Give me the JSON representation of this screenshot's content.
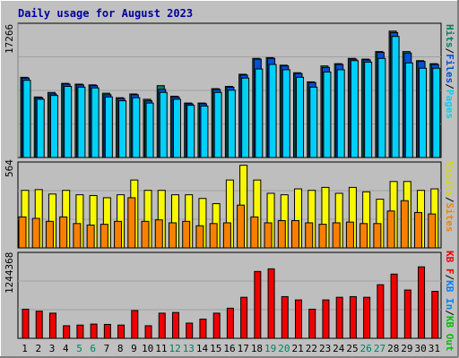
{
  "title": "Daily usage for August 2023",
  "colors": {
    "frame_bg": "#C0C0C0",
    "plot_bg": "#BEBEBE",
    "title": "#0000A0",
    "hits": "#00805C",
    "files": "#0050D8",
    "pages": "#00D0F8",
    "visits": "#F8F800",
    "sites": "#F88000",
    "kb_in": "#0080FF",
    "kb_out": "#00C000",
    "kb_f": "#F00000",
    "weekend_label": "#008060",
    "weekday_label": "#000000"
  },
  "legend": {
    "top": [
      {
        "text": "Hits",
        "color": "#00805C"
      },
      {
        "text": "/",
        "color": "#000000"
      },
      {
        "text": "Files",
        "color": "#0050D8"
      },
      {
        "text": "/",
        "color": "#000000"
      },
      {
        "text": "Pages",
        "color": "#00D0F8"
      }
    ],
    "mid": [
      {
        "text": "Visits",
        "color": "#D8D800"
      },
      {
        "text": "/",
        "color": "#000000"
      },
      {
        "text": "Sites",
        "color": "#F88000"
      }
    ],
    "bot": [
      {
        "text": "KB F",
        "color": "#F00000"
      },
      {
        "text": "/",
        "color": "#000000"
      },
      {
        "text": "KB In",
        "color": "#0080FF"
      },
      {
        "text": "/",
        "color": "#000000"
      },
      {
        "text": "KB Out",
        "color": "#00C000"
      }
    ]
  },
  "chart_data": [
    {
      "type": "bar",
      "panel": "hits-files-pages",
      "ymax_label": "17266",
      "ylim": [
        0,
        17266
      ],
      "categories": [
        "1",
        "2",
        "3",
        "4",
        "5",
        "6",
        "7",
        "8",
        "9",
        "10",
        "11",
        "12",
        "13",
        "14",
        "15",
        "16",
        "17",
        "18",
        "19",
        "20",
        "21",
        "22",
        "23",
        "24",
        "25",
        "26",
        "27",
        "28",
        "29",
        "30",
        "31"
      ],
      "series": [
        {
          "name": "Hits",
          "values": [
            10600,
            8000,
            8600,
            9800,
            9700,
            9600,
            8500,
            7900,
            8400,
            7700,
            9500,
            8100,
            7200,
            7200,
            9100,
            9400,
            11000,
            13100,
            13200,
            12200,
            11200,
            10000,
            12100,
            12400,
            13100,
            13000,
            14000,
            16700,
            14000,
            12800,
            12400
          ]
        },
        {
          "name": "Files",
          "values": [
            10500,
            7900,
            8400,
            9700,
            9600,
            9500,
            8300,
            7800,
            8300,
            7500,
            9000,
            8000,
            7100,
            7100,
            9000,
            9300,
            10900,
            13000,
            13100,
            12100,
            11100,
            9900,
            11900,
            12300,
            13000,
            12900,
            13900,
            16500,
            13800,
            12700,
            12300
          ]
        },
        {
          "name": "Pages",
          "values": [
            10200,
            7700,
            8200,
            9400,
            9300,
            9200,
            8000,
            7500,
            7900,
            7200,
            8600,
            7700,
            6900,
            6800,
            8600,
            8900,
            10500,
            11700,
            12300,
            11600,
            10600,
            9300,
            11300,
            11600,
            12800,
            12600,
            13100,
            16000,
            12500,
            11800,
            11800
          ]
        }
      ]
    },
    {
      "type": "bar",
      "panel": "visits-sites",
      "ymax_label": "564",
      "ylim": [
        0,
        564
      ],
      "categories": [
        "1",
        "2",
        "3",
        "4",
        "5",
        "6",
        "7",
        "8",
        "9",
        "10",
        "11",
        "12",
        "13",
        "14",
        "15",
        "16",
        "17",
        "18",
        "19",
        "20",
        "21",
        "22",
        "23",
        "24",
        "25",
        "26",
        "27",
        "28",
        "29",
        "30",
        "31"
      ],
      "series": [
        {
          "name": "Visits",
          "values": [
            390,
            395,
            365,
            390,
            360,
            355,
            340,
            360,
            460,
            390,
            390,
            360,
            360,
            335,
            300,
            460,
            560,
            460,
            370,
            360,
            400,
            390,
            410,
            370,
            410,
            380,
            330,
            450,
            450,
            390,
            400
          ]
        },
        {
          "name": "Sites",
          "values": [
            210,
            200,
            180,
            210,
            165,
            155,
            160,
            180,
            340,
            180,
            190,
            170,
            180,
            150,
            165,
            170,
            290,
            210,
            170,
            185,
            185,
            170,
            160,
            170,
            175,
            165,
            165,
            250,
            320,
            240,
            230
          ]
        }
      ]
    },
    {
      "type": "bar",
      "panel": "kbytes",
      "ymax_label": "1244368",
      "ylim": [
        0,
        1244368
      ],
      "categories": [
        "1",
        "2",
        "3",
        "4",
        "5",
        "6",
        "7",
        "8",
        "9",
        "10",
        "11",
        "12",
        "13",
        "14",
        "15",
        "16",
        "17",
        "18",
        "19",
        "20",
        "21",
        "22",
        "23",
        "24",
        "25",
        "26",
        "27",
        "28",
        "29",
        "30",
        "31"
      ],
      "series": [
        {
          "name": "KB F",
          "values": [
            440000,
            410000,
            380000,
            190000,
            200000,
            215000,
            210000,
            200000,
            420000,
            190000,
            380000,
            390000,
            230000,
            290000,
            380000,
            455000,
            620000,
            1010000,
            1050000,
            630000,
            580000,
            440000,
            580000,
            620000,
            630000,
            620000,
            810000,
            970000,
            730000,
            1080000,
            710000
          ]
        }
      ]
    }
  ],
  "x_labels": [
    {
      "text": "1",
      "weekend": false
    },
    {
      "text": "2",
      "weekend": false
    },
    {
      "text": "3",
      "weekend": false
    },
    {
      "text": "4",
      "weekend": false
    },
    {
      "text": "5",
      "weekend": true
    },
    {
      "text": "6",
      "weekend": true
    },
    {
      "text": "7",
      "weekend": false
    },
    {
      "text": "8",
      "weekend": false
    },
    {
      "text": "9",
      "weekend": false
    },
    {
      "text": "10",
      "weekend": false
    },
    {
      "text": "11",
      "weekend": false
    },
    {
      "text": "12",
      "weekend": true
    },
    {
      "text": "13",
      "weekend": true
    },
    {
      "text": "14",
      "weekend": false
    },
    {
      "text": "15",
      "weekend": false
    },
    {
      "text": "16",
      "weekend": false
    },
    {
      "text": "17",
      "weekend": false
    },
    {
      "text": "18",
      "weekend": false
    },
    {
      "text": "19",
      "weekend": true
    },
    {
      "text": "20",
      "weekend": true
    },
    {
      "text": "21",
      "weekend": false
    },
    {
      "text": "22",
      "weekend": false
    },
    {
      "text": "23",
      "weekend": false
    },
    {
      "text": "24",
      "weekend": false
    },
    {
      "text": "25",
      "weekend": false
    },
    {
      "text": "26",
      "weekend": true
    },
    {
      "text": "27",
      "weekend": true
    },
    {
      "text": "28",
      "weekend": false
    },
    {
      "text": "29",
      "weekend": false
    },
    {
      "text": "30",
      "weekend": false
    },
    {
      "text": "31",
      "weekend": false
    }
  ]
}
